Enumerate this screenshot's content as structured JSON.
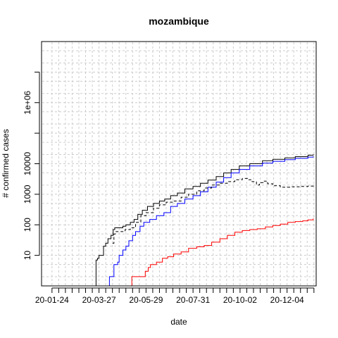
{
  "chart_data": {
    "type": "line",
    "title": "mozambique",
    "xlabel": "date",
    "ylabel": "# confirmed cases",
    "yscale": "log10",
    "ylim": [
      1,
      100000000
    ],
    "xlim": [
      "2020-01-10",
      "2021-01-12"
    ],
    "grid": true,
    "x_tick_labels": [
      "20-01-24",
      "20-03-27",
      "20-05-29",
      "20-07-31",
      "20-10-02",
      "20-12-04"
    ],
    "y_tick_labels": [
      "10",
      "100",
      "1000",
      "10000",
      "1e+06"
    ],
    "y_tick_values": [
      10,
      100,
      1000,
      10000,
      1000000
    ],
    "y_minor_ticks": [
      100000,
      10000000
    ],
    "series": [
      {
        "color": "#000000",
        "linestyle": "solid",
        "points": [
          [
            "2020-03-22",
            1
          ],
          [
            "2020-03-23",
            7
          ],
          [
            "2020-03-25",
            8
          ],
          [
            "2020-03-27",
            10
          ],
          [
            "2020-03-31",
            10
          ],
          [
            "2020-04-02",
            20
          ],
          [
            "2020-04-05",
            25
          ],
          [
            "2020-04-08",
            35
          ],
          [
            "2020-04-12",
            45
          ],
          [
            "2020-04-15",
            70
          ],
          [
            "2020-04-17",
            80
          ],
          [
            "2020-04-22",
            80
          ],
          [
            "2020-04-28",
            90
          ],
          [
            "2020-05-02",
            100
          ],
          [
            "2020-05-08",
            120
          ],
          [
            "2020-05-13",
            150
          ],
          [
            "2020-05-18",
            220
          ],
          [
            "2020-05-24",
            300
          ],
          [
            "2020-05-31",
            400
          ],
          [
            "2020-06-08",
            500
          ],
          [
            "2020-06-16",
            600
          ],
          [
            "2020-06-23",
            700
          ],
          [
            "2020-07-01",
            900
          ],
          [
            "2020-07-10",
            1100
          ],
          [
            "2020-07-20",
            1500
          ],
          [
            "2020-07-31",
            1800
          ],
          [
            "2020-08-10",
            2300
          ],
          [
            "2020-08-20",
            2900
          ],
          [
            "2020-08-31",
            3800
          ],
          [
            "2020-09-10",
            5000
          ],
          [
            "2020-09-20",
            6500
          ],
          [
            "2020-10-01",
            8500
          ],
          [
            "2020-10-15",
            10000
          ],
          [
            "2020-11-01",
            12500
          ],
          [
            "2020-11-15",
            14000
          ],
          [
            "2020-12-01",
            15500
          ],
          [
            "2020-12-15",
            17000
          ],
          [
            "2021-01-01",
            19000
          ],
          [
            "2021-01-08",
            20000
          ]
        ]
      },
      {
        "color": "#0000ff",
        "linestyle": "solid",
        "points": [
          [
            "2020-04-02",
            1
          ],
          [
            "2020-04-09",
            1
          ],
          [
            "2020-04-10",
            2
          ],
          [
            "2020-04-15",
            2
          ],
          [
            "2020-04-16",
            5
          ],
          [
            "2020-04-21",
            6
          ],
          [
            "2020-04-23",
            10
          ],
          [
            "2020-04-28",
            15
          ],
          [
            "2020-05-02",
            20
          ],
          [
            "2020-05-06",
            30
          ],
          [
            "2020-05-11",
            45
          ],
          [
            "2020-05-15",
            60
          ],
          [
            "2020-05-21",
            90
          ],
          [
            "2020-05-26",
            120
          ],
          [
            "2020-06-03",
            150
          ],
          [
            "2020-06-12",
            200
          ],
          [
            "2020-06-22",
            250
          ],
          [
            "2020-07-01",
            400
          ],
          [
            "2020-07-10",
            500
          ],
          [
            "2020-07-20",
            700
          ],
          [
            "2020-07-31",
            900
          ],
          [
            "2020-08-10",
            1200
          ],
          [
            "2020-08-20",
            1700
          ],
          [
            "2020-08-31",
            2500
          ],
          [
            "2020-09-10",
            3500
          ],
          [
            "2020-09-20",
            5000
          ],
          [
            "2020-10-01",
            6500
          ],
          [
            "2020-10-15",
            8500
          ],
          [
            "2020-11-01",
            10500
          ],
          [
            "2020-11-15",
            12000
          ],
          [
            "2020-12-01",
            13500
          ],
          [
            "2020-12-15",
            15000
          ],
          [
            "2021-01-01",
            16500
          ],
          [
            "2021-01-08",
            17500
          ]
        ]
      },
      {
        "color": "#000000",
        "linestyle": "dashed",
        "points": [
          [
            "2020-04-14",
            25
          ],
          [
            "2020-04-16",
            50
          ],
          [
            "2020-04-18",
            60
          ],
          [
            "2020-04-24",
            60
          ],
          [
            "2020-05-01",
            70
          ],
          [
            "2020-05-08",
            80
          ],
          [
            "2020-05-15",
            120
          ],
          [
            "2020-05-22",
            200
          ],
          [
            "2020-05-29",
            250
          ],
          [
            "2020-06-08",
            350
          ],
          [
            "2020-06-16",
            450
          ],
          [
            "2020-06-25",
            550
          ],
          [
            "2020-07-05",
            600
          ],
          [
            "2020-07-15",
            800
          ],
          [
            "2020-07-25",
            1000
          ],
          [
            "2020-08-05",
            1300
          ],
          [
            "2020-08-15",
            1600
          ],
          [
            "2020-08-25",
            2000
          ],
          [
            "2020-09-05",
            2300
          ],
          [
            "2020-09-15",
            2600
          ],
          [
            "2020-09-25",
            3000
          ],
          [
            "2020-10-05",
            3300
          ],
          [
            "2020-10-12",
            3000
          ],
          [
            "2020-10-18",
            2600
          ],
          [
            "2020-10-24",
            2000
          ],
          [
            "2020-10-28",
            2400
          ],
          [
            "2020-11-02",
            2700
          ],
          [
            "2020-11-08",
            2200
          ],
          [
            "2020-11-15",
            1900
          ],
          [
            "2020-11-25",
            1700
          ],
          [
            "2020-12-10",
            1750
          ],
          [
            "2020-12-22",
            1800
          ],
          [
            "2021-01-01",
            1850
          ],
          [
            "2021-01-08",
            1700
          ]
        ]
      },
      {
        "color": "#ff0000",
        "linestyle": "solid",
        "points": [
          [
            "2020-05-10",
            1
          ],
          [
            "2020-05-10",
            2
          ],
          [
            "2020-05-25",
            2
          ],
          [
            "2020-05-28",
            3
          ],
          [
            "2020-06-01",
            4
          ],
          [
            "2020-06-04",
            5
          ],
          [
            "2020-06-12",
            6
          ],
          [
            "2020-06-20",
            8
          ],
          [
            "2020-06-27",
            9
          ],
          [
            "2020-07-05",
            11
          ],
          [
            "2020-07-15",
            13
          ],
          [
            "2020-07-25",
            17
          ],
          [
            "2020-08-05",
            19
          ],
          [
            "2020-08-15",
            21
          ],
          [
            "2020-08-25",
            27
          ],
          [
            "2020-09-05",
            35
          ],
          [
            "2020-09-15",
            45
          ],
          [
            "2020-09-25",
            57
          ],
          [
            "2020-10-05",
            65
          ],
          [
            "2020-10-15",
            70
          ],
          [
            "2020-10-25",
            74
          ],
          [
            "2020-11-05",
            85
          ],
          [
            "2020-11-15",
            95
          ],
          [
            "2020-11-25",
            105
          ],
          [
            "2020-12-05",
            120
          ],
          [
            "2020-12-15",
            128
          ],
          [
            "2020-12-25",
            135
          ],
          [
            "2021-01-01",
            145
          ],
          [
            "2021-01-08",
            160
          ]
        ]
      }
    ]
  }
}
